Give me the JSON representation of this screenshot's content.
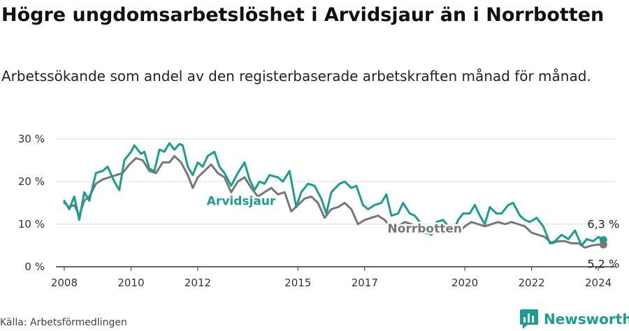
{
  "title": "Högre ungdomsarbetslöshet i Arvidsjaur än i Norrbotten",
  "subtitle": "Arbetssökande som andel av den registerbaserade arbetskraften månad för månad.",
  "source": "Källa: Arbetsförmedlingen",
  "brand": "Newsworthy",
  "colors": {
    "arvidsjaur": "#1a9e8f",
    "norrbotten": "#777777",
    "grid": "#dddddd"
  },
  "chart_data": {
    "type": "line",
    "title": "Högre ungdomsarbetslöshet i Arvidsjaur än i Norrbotten",
    "xlabel": "",
    "ylabel": "",
    "xlim": [
      2007.75,
      2024.5
    ],
    "ylim": [
      0,
      30
    ],
    "yticks": [
      0,
      10,
      20,
      30
    ],
    "ytick_labels": [
      "0 %",
      "10 %",
      "20 %",
      "30 %"
    ],
    "xticks": [
      2008,
      2010,
      2012,
      2015,
      2017,
      2020,
      2022,
      2024
    ],
    "xtick_labels": [
      "2008",
      "2010",
      "2012",
      "2015",
      "2017",
      "2020",
      "2022",
      "2024"
    ],
    "series": [
      {
        "name": "Arvidsjaur",
        "points": [
          [
            2008.0,
            15.5
          ],
          [
            2008.15,
            13.5
          ],
          [
            2008.3,
            16.5
          ],
          [
            2008.45,
            11.0
          ],
          [
            2008.6,
            17.5
          ],
          [
            2008.75,
            15.5
          ],
          [
            2008.95,
            22.0
          ],
          [
            2009.15,
            22.5
          ],
          [
            2009.3,
            23.5
          ],
          [
            2009.5,
            20.0
          ],
          [
            2009.65,
            18.0
          ],
          [
            2009.8,
            25.0
          ],
          [
            2010.0,
            27.0
          ],
          [
            2010.1,
            28.5
          ],
          [
            2010.3,
            26.5
          ],
          [
            2010.4,
            27.0
          ],
          [
            2010.55,
            23.0
          ],
          [
            2010.7,
            22.5
          ],
          [
            2010.85,
            27.5
          ],
          [
            2011.0,
            27.0
          ],
          [
            2011.15,
            29.0
          ],
          [
            2011.3,
            27.5
          ],
          [
            2011.45,
            28.8
          ],
          [
            2011.55,
            28.5
          ],
          [
            2011.7,
            23.5
          ],
          [
            2011.85,
            21.5
          ],
          [
            2012.0,
            24.5
          ],
          [
            2012.15,
            23.5
          ],
          [
            2012.3,
            26.0
          ],
          [
            2012.5,
            27.0
          ],
          [
            2012.65,
            23.5
          ],
          [
            2012.8,
            22.0
          ],
          [
            2013.0,
            19.0
          ],
          [
            2013.2,
            22.0
          ],
          [
            2013.4,
            24.5
          ],
          [
            2013.55,
            20.5
          ],
          [
            2013.7,
            18.0
          ],
          [
            2013.85,
            20.0
          ],
          [
            2014.0,
            19.5
          ],
          [
            2014.15,
            21.5
          ],
          [
            2014.4,
            21.0
          ],
          [
            2014.55,
            20.0
          ],
          [
            2014.75,
            22.5
          ],
          [
            2014.95,
            14.0
          ],
          [
            2015.1,
            17.5
          ],
          [
            2015.3,
            19.5
          ],
          [
            2015.5,
            19.0
          ],
          [
            2015.7,
            16.0
          ],
          [
            2015.85,
            12.5
          ],
          [
            2016.0,
            17.5
          ],
          [
            2016.25,
            19.5
          ],
          [
            2016.4,
            20.0
          ],
          [
            2016.6,
            18.5
          ],
          [
            2016.75,
            19.0
          ],
          [
            2016.95,
            14.5
          ],
          [
            2017.1,
            13.5
          ],
          [
            2017.3,
            14.5
          ],
          [
            2017.5,
            15.0
          ],
          [
            2017.65,
            17.0
          ],
          [
            2017.8,
            12.0
          ],
          [
            2018.0,
            12.5
          ],
          [
            2018.15,
            15.0
          ],
          [
            2018.35,
            12.5
          ],
          [
            2018.5,
            12.0
          ],
          [
            2018.7,
            10.0
          ],
          [
            2018.85,
            8.0
          ],
          [
            2019.0,
            7.5
          ],
          [
            2019.15,
            10.5
          ],
          [
            2019.35,
            11.0
          ],
          [
            2019.5,
            9.5
          ],
          [
            2019.65,
            8.0
          ],
          [
            2019.8,
            11.0
          ],
          [
            2019.95,
            12.5
          ],
          [
            2020.15,
            12.5
          ],
          [
            2020.3,
            14.5
          ],
          [
            2020.45,
            12.0
          ],
          [
            2020.6,
            10.0
          ],
          [
            2020.75,
            14.0
          ],
          [
            2020.95,
            12.5
          ],
          [
            2021.1,
            12.5
          ],
          [
            2021.3,
            14.5
          ],
          [
            2021.45,
            15.0
          ],
          [
            2021.65,
            12.0
          ],
          [
            2021.8,
            11.0
          ],
          [
            2021.95,
            10.5
          ],
          [
            2022.15,
            11.5
          ],
          [
            2022.35,
            9.5
          ],
          [
            2022.55,
            5.5
          ],
          [
            2022.7,
            6.0
          ],
          [
            2022.9,
            7.5
          ],
          [
            2023.1,
            6.5
          ],
          [
            2023.3,
            8.5
          ],
          [
            2023.5,
            5.0
          ],
          [
            2023.65,
            6.5
          ],
          [
            2023.85,
            6.0
          ],
          [
            2024.0,
            7.0
          ],
          [
            2024.15,
            6.3
          ]
        ]
      },
      {
        "name": "Norrbotten",
        "points": [
          [
            2008.0,
            15.0
          ],
          [
            2008.15,
            14.0
          ],
          [
            2008.3,
            14.5
          ],
          [
            2008.45,
            12.0
          ],
          [
            2008.6,
            15.5
          ],
          [
            2008.75,
            16.5
          ],
          [
            2008.95,
            19.5
          ],
          [
            2009.15,
            20.5
          ],
          [
            2009.35,
            21.0
          ],
          [
            2009.55,
            21.5
          ],
          [
            2009.75,
            22.0
          ],
          [
            2009.95,
            24.0
          ],
          [
            2010.15,
            25.5
          ],
          [
            2010.35,
            25.0
          ],
          [
            2010.55,
            22.5
          ],
          [
            2010.75,
            22.0
          ],
          [
            2010.95,
            24.5
          ],
          [
            2011.15,
            24.5
          ],
          [
            2011.3,
            26.0
          ],
          [
            2011.5,
            24.5
          ],
          [
            2011.7,
            21.5
          ],
          [
            2011.85,
            18.5
          ],
          [
            2012.0,
            21.0
          ],
          [
            2012.2,
            22.5
          ],
          [
            2012.4,
            24.0
          ],
          [
            2012.6,
            22.0
          ],
          [
            2012.8,
            21.0
          ],
          [
            2013.0,
            17.5
          ],
          [
            2013.2,
            20.0
          ],
          [
            2013.4,
            21.0
          ],
          [
            2013.6,
            18.5
          ],
          [
            2013.8,
            16.5
          ],
          [
            2014.0,
            17.5
          ],
          [
            2014.2,
            18.5
          ],
          [
            2014.4,
            17.0
          ],
          [
            2014.6,
            17.5
          ],
          [
            2014.8,
            13.0
          ],
          [
            2015.0,
            14.5
          ],
          [
            2015.2,
            16.0
          ],
          [
            2015.4,
            16.5
          ],
          [
            2015.6,
            15.0
          ],
          [
            2015.8,
            11.5
          ],
          [
            2016.0,
            13.5
          ],
          [
            2016.2,
            14.0
          ],
          [
            2016.4,
            15.0
          ],
          [
            2016.6,
            13.5
          ],
          [
            2016.8,
            10.0
          ],
          [
            2017.0,
            11.0
          ],
          [
            2017.2,
            11.5
          ],
          [
            2017.4,
            12.0
          ],
          [
            2017.6,
            11.0
          ],
          [
            2017.8,
            9.0
          ],
          [
            2018.0,
            9.5
          ],
          [
            2018.2,
            10.5
          ],
          [
            2018.4,
            10.0
          ],
          [
            2018.6,
            9.0
          ],
          [
            2018.8,
            8.0
          ],
          [
            2019.0,
            8.0
          ],
          [
            2019.2,
            9.0
          ],
          [
            2019.4,
            9.0
          ],
          [
            2019.6,
            8.5
          ],
          [
            2019.8,
            8.0
          ],
          [
            2020.0,
            9.5
          ],
          [
            2020.2,
            10.5
          ],
          [
            2020.4,
            10.0
          ],
          [
            2020.6,
            9.5
          ],
          [
            2020.8,
            10.0
          ],
          [
            2021.0,
            10.5
          ],
          [
            2021.2,
            10.0
          ],
          [
            2021.4,
            10.5
          ],
          [
            2021.6,
            10.0
          ],
          [
            2021.8,
            9.5
          ],
          [
            2022.0,
            8.0
          ],
          [
            2022.2,
            7.5
          ],
          [
            2022.4,
            7.0
          ],
          [
            2022.6,
            5.5
          ],
          [
            2022.8,
            6.0
          ],
          [
            2023.0,
            6.0
          ],
          [
            2023.2,
            5.5
          ],
          [
            2023.4,
            5.5
          ],
          [
            2023.6,
            4.5
          ],
          [
            2023.8,
            5.0
          ],
          [
            2024.0,
            5.2
          ],
          [
            2024.15,
            5.2
          ]
        ]
      }
    ],
    "annotations": [
      {
        "series": "Arvidsjaur",
        "text": "Arvidsjaur",
        "x": 2013.3,
        "y": 15.5
      },
      {
        "series": "Norrbotten",
        "text": "Norrbotten",
        "x": 2018.8,
        "y": 9.0
      }
    ],
    "end_labels": [
      {
        "series": "Arvidsjaur",
        "text": "6,3 %",
        "x": 2024.15,
        "y": 6.3
      },
      {
        "series": "Norrbotten",
        "text": "5,2 %",
        "x": 2024.15,
        "y": 5.2
      }
    ]
  }
}
